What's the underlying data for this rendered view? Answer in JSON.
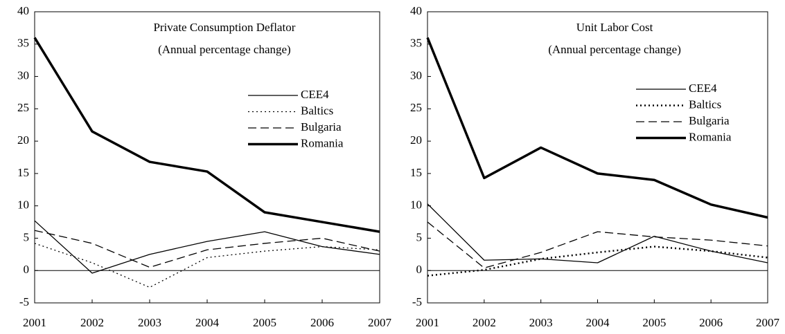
{
  "chart_data": [
    {
      "type": "line",
      "title": "Private Consumption Deflator",
      "subtitle": "(Annual percentage change)",
      "categories": [
        "2001",
        "2002",
        "2003",
        "2004",
        "2005",
        "2006",
        "2007"
      ],
      "ylim": [
        -5,
        40
      ],
      "yticks": [
        -5,
        0,
        5,
        10,
        15,
        20,
        25,
        30,
        35,
        40
      ],
      "legend": "upper-right",
      "series": [
        {
          "name": "CEE4",
          "color": "#000000",
          "width": 1.3,
          "dash": "none",
          "values": [
            7.7,
            -0.4,
            2.5,
            4.5,
            6,
            3.7,
            2.5
          ]
        },
        {
          "name": "Baltics",
          "color": "#000000",
          "width": 1.3,
          "dash": "2 4",
          "values": [
            4.2,
            1.2,
            -2.6,
            2,
            3,
            3.7,
            3.2
          ]
        },
        {
          "name": "Bulgaria",
          "color": "#000000",
          "width": 1.3,
          "dash": "12 6",
          "values": [
            6.2,
            4.2,
            0.5,
            3.2,
            4.2,
            5,
            3
          ]
        },
        {
          "name": "Romania",
          "color": "#000000",
          "width": 3.5,
          "dash": "none",
          "values": [
            36,
            21.5,
            16.8,
            15.3,
            9,
            7.5,
            6
          ]
        }
      ]
    },
    {
      "type": "line",
      "title": "Unit Labor Cost",
      "subtitle": "(Annual percentage change)",
      "categories": [
        "2001",
        "2002",
        "2003",
        "2004",
        "2005",
        "2006",
        "2007"
      ],
      "ylim": [
        -5,
        40
      ],
      "yticks": [
        -5,
        0,
        5,
        10,
        15,
        20,
        25,
        30,
        35,
        40
      ],
      "legend": "upper-right",
      "series": [
        {
          "name": "CEE4",
          "color": "#000000",
          "width": 1.3,
          "dash": "none",
          "values": [
            10.3,
            1.6,
            1.8,
            1.2,
            5.3,
            3,
            1.2
          ]
        },
        {
          "name": "Baltics",
          "color": "#000000",
          "width": 2.5,
          "dash": "2 4",
          "values": [
            -0.8,
            0.1,
            1.8,
            2.8,
            3.7,
            3,
            2
          ]
        },
        {
          "name": "Bulgaria",
          "color": "#000000",
          "width": 1.3,
          "dash": "12 6",
          "values": [
            7.5,
            0.4,
            2.8,
            6,
            5.2,
            4.7,
            3.8
          ]
        },
        {
          "name": "Romania",
          "color": "#000000",
          "width": 3.5,
          "dash": "none",
          "values": [
            36,
            14.3,
            19,
            15,
            14,
            10.2,
            8.2
          ]
        }
      ]
    }
  ]
}
